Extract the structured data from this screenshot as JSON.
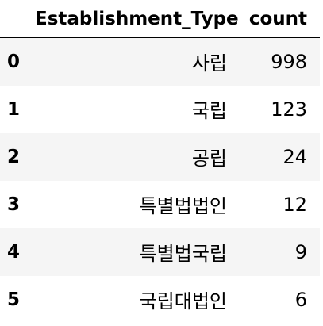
{
  "table": {
    "columns": [
      "Establishment_Type",
      "count"
    ],
    "rows": [
      {
        "index": "0",
        "type": "사립",
        "count": "998"
      },
      {
        "index": "1",
        "type": "국립",
        "count": "123"
      },
      {
        "index": "2",
        "type": "공립",
        "count": "24"
      },
      {
        "index": "3",
        "type": "특별법법인",
        "count": "12"
      },
      {
        "index": "4",
        "type": "특별법국립",
        "count": "9"
      },
      {
        "index": "5",
        "type": "국립대법인",
        "count": "6"
      }
    ]
  }
}
